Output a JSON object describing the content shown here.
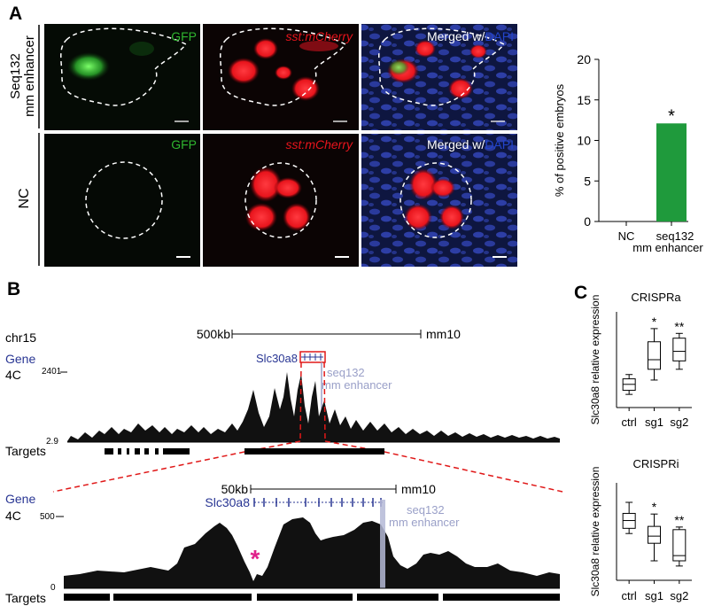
{
  "panel_a": {
    "letter": "A",
    "row1_label_a": "Seq132",
    "row1_label_b": "mm enhancer",
    "row2_label": "NC",
    "col_gfp": "GFP",
    "col_mcherry": "sst:mCherry",
    "col_merged_prefix": "Merged w/",
    "col_merged_dapi": "DAPI",
    "colors": {
      "gfp": "#2fb52f",
      "mcherry": "#e8141c",
      "dapi": "#2244cc",
      "bar": "#1f9a3c"
    }
  },
  "chart_data": [
    {
      "type": "bar",
      "categories": [
        "NC",
        "seq132 mm enhancer"
      ],
      "category_labels": [
        "NC",
        "seq132",
        "mm enhancer"
      ],
      "values": [
        0,
        12.1
      ],
      "ylabel": "% of positive embryos",
      "ylim": [
        0,
        20
      ],
      "yticks": [
        "0",
        "5",
        "10",
        "15",
        "20"
      ],
      "annotation": "*"
    },
    {
      "type": "box",
      "title": "CRISPRa",
      "categories": [
        "ctrl",
        "sg1",
        "sg2"
      ],
      "ylabel": "Slc30a8 relative expression",
      "ylim": [
        0,
        4
      ],
      "boxes": [
        {
          "min": 0.55,
          "q1": 0.72,
          "median": 0.97,
          "q3": 1.2,
          "max": 1.38
        },
        {
          "min": 1.15,
          "q1": 1.6,
          "median": 2.0,
          "q3": 2.75,
          "max": 3.3
        },
        {
          "min": 1.6,
          "q1": 1.95,
          "median": 2.35,
          "q3": 2.9,
          "max": 3.1
        }
      ],
      "significance": [
        "",
        "*",
        "**"
      ]
    },
    {
      "type": "box",
      "title": "CRISPRi",
      "categories": [
        "ctrl",
        "sg1",
        "sg2"
      ],
      "ylabel": "Slc30a8 relative expression",
      "ylim": [
        0,
        1.5
      ],
      "boxes": [
        {
          "min": 0.72,
          "q1": 0.8,
          "median": 0.92,
          "q3": 1.03,
          "max": 1.2
        },
        {
          "min": 0.3,
          "q1": 0.57,
          "median": 0.68,
          "q3": 0.83,
          "max": 1.02
        },
        {
          "min": 0.22,
          "q1": 0.3,
          "median": 0.38,
          "q3": 0.78,
          "max": 0.82
        }
      ],
      "significance": [
        "",
        "*",
        "**"
      ]
    }
  ],
  "panel_b": {
    "letter": "B",
    "chrom": "chr15",
    "scale_top": "500kb",
    "assembly": "mm10",
    "gene_row": "Gene",
    "track_4c": "4C",
    "ymax_top": "2401",
    "ymin_top": "2.9",
    "gene_name": "Slc30a8",
    "enhancer_a": "seq132",
    "enhancer_b": "mm enhancer",
    "targets": "Targets",
    "scale_bottom": "50kb",
    "ymax_bottom": "500",
    "ymin_bottom": "0",
    "star": "*",
    "colors": {
      "gene": "#283593",
      "enhancer": "#9aa0c8",
      "zoom": "#e01818",
      "star": "#e0218a"
    }
  },
  "panel_c": {
    "letter": "C"
  }
}
